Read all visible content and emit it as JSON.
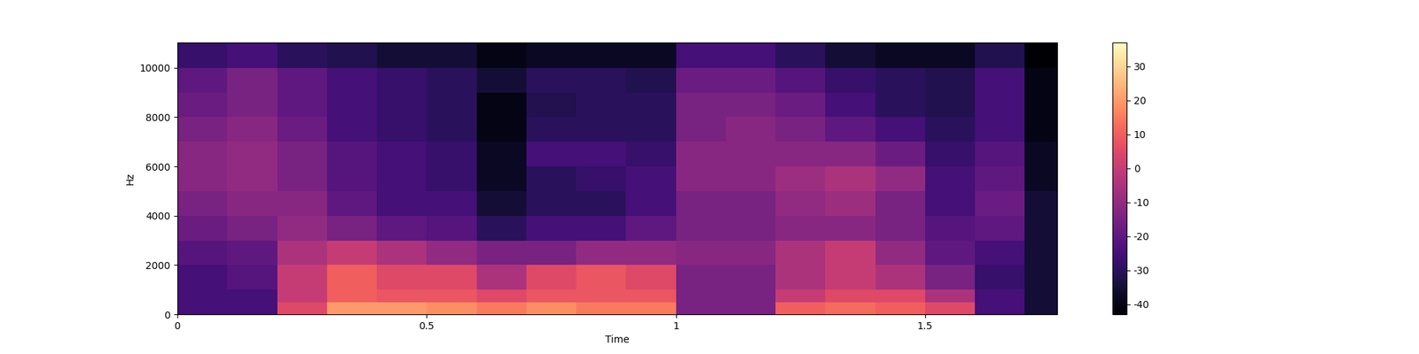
{
  "chart_data": {
    "type": "heatmap",
    "x_label": "Time",
    "y_label": "Hz",
    "x_edges": [
      0,
      0.1,
      0.2,
      0.3,
      0.4,
      0.5,
      0.6,
      0.7,
      0.8,
      0.9,
      1.0,
      1.1,
      1.2,
      1.3,
      1.4,
      1.5,
      1.6,
      1.7,
      1.765
    ],
    "y_edges": [
      0,
      500,
      1000,
      2000,
      3000,
      4000,
      5000,
      6000,
      7000,
      8000,
      9000,
      10000,
      11025
    ],
    "cells": [
      [
        -25,
        -25,
        5,
        20,
        20,
        18,
        15,
        18,
        15,
        15,
        -15,
        -15,
        10,
        12,
        10,
        5,
        -25,
        -35
      ],
      [
        -25,
        -25,
        0,
        10,
        8,
        8,
        5,
        8,
        8,
        8,
        -15,
        -15,
        0,
        5,
        5,
        -5,
        -25,
        -35
      ],
      [
        -25,
        -22,
        0,
        10,
        5,
        5,
        -5,
        5,
        8,
        5,
        -15,
        -15,
        -5,
        0,
        -5,
        -15,
        -28,
        -35
      ],
      [
        -22,
        -20,
        -5,
        0,
        -5,
        -10,
        -15,
        -15,
        -10,
        -10,
        -12,
        -12,
        -5,
        0,
        -10,
        -20,
        -25,
        -35
      ],
      [
        -18,
        -15,
        -10,
        -15,
        -20,
        -22,
        -30,
        -25,
        -25,
        -20,
        -15,
        -15,
        -12,
        -12,
        -15,
        -22,
        -20,
        -35
      ],
      [
        -15,
        -12,
        -12,
        -20,
        -25,
        -25,
        -35,
        -30,
        -30,
        -25,
        -15,
        -15,
        -10,
        -8,
        -15,
        -25,
        -18,
        -35
      ],
      [
        -12,
        -10,
        -15,
        -22,
        -25,
        -28,
        -38,
        -30,
        -28,
        -25,
        -12,
        -12,
        -8,
        -5,
        -10,
        -25,
        -20,
        -38
      ],
      [
        -12,
        -10,
        -15,
        -22,
        -25,
        -28,
        -38,
        -25,
        -25,
        -28,
        -12,
        -12,
        -12,
        -12,
        -18,
        -28,
        -22,
        -38
      ],
      [
        -15,
        -12,
        -18,
        -25,
        -28,
        -30,
        -40,
        -30,
        -30,
        -30,
        -15,
        -12,
        -15,
        -20,
        -25,
        -30,
        -25,
        -40
      ],
      [
        -18,
        -15,
        -20,
        -25,
        -28,
        -30,
        -40,
        -32,
        -30,
        -30,
        -15,
        -15,
        -18,
        -25,
        -30,
        -32,
        -25,
        -40
      ],
      [
        -20,
        -15,
        -20,
        -25,
        -28,
        -30,
        -35,
        -30,
        -30,
        -32,
        -18,
        -18,
        -22,
        -28,
        -30,
        -32,
        -25,
        -40
      ],
      [
        -28,
        -25,
        -30,
        -32,
        -35,
        -35,
        -40,
        -38,
        -38,
        -38,
        -25,
        -25,
        -30,
        -35,
        -38,
        -38,
        -32,
        -43
      ]
    ],
    "xlim": [
      0,
      1.765
    ],
    "ylim": [
      0,
      11025
    ],
    "xticks": [
      0,
      0.5,
      1,
      1.5
    ],
    "yticks": [
      0,
      2000,
      4000,
      6000,
      8000,
      10000
    ],
    "colorbar": {
      "range": [
        -43,
        37
      ],
      "ticks": [
        -40,
        -30,
        -20,
        -10,
        0,
        10,
        20,
        30
      ]
    }
  }
}
